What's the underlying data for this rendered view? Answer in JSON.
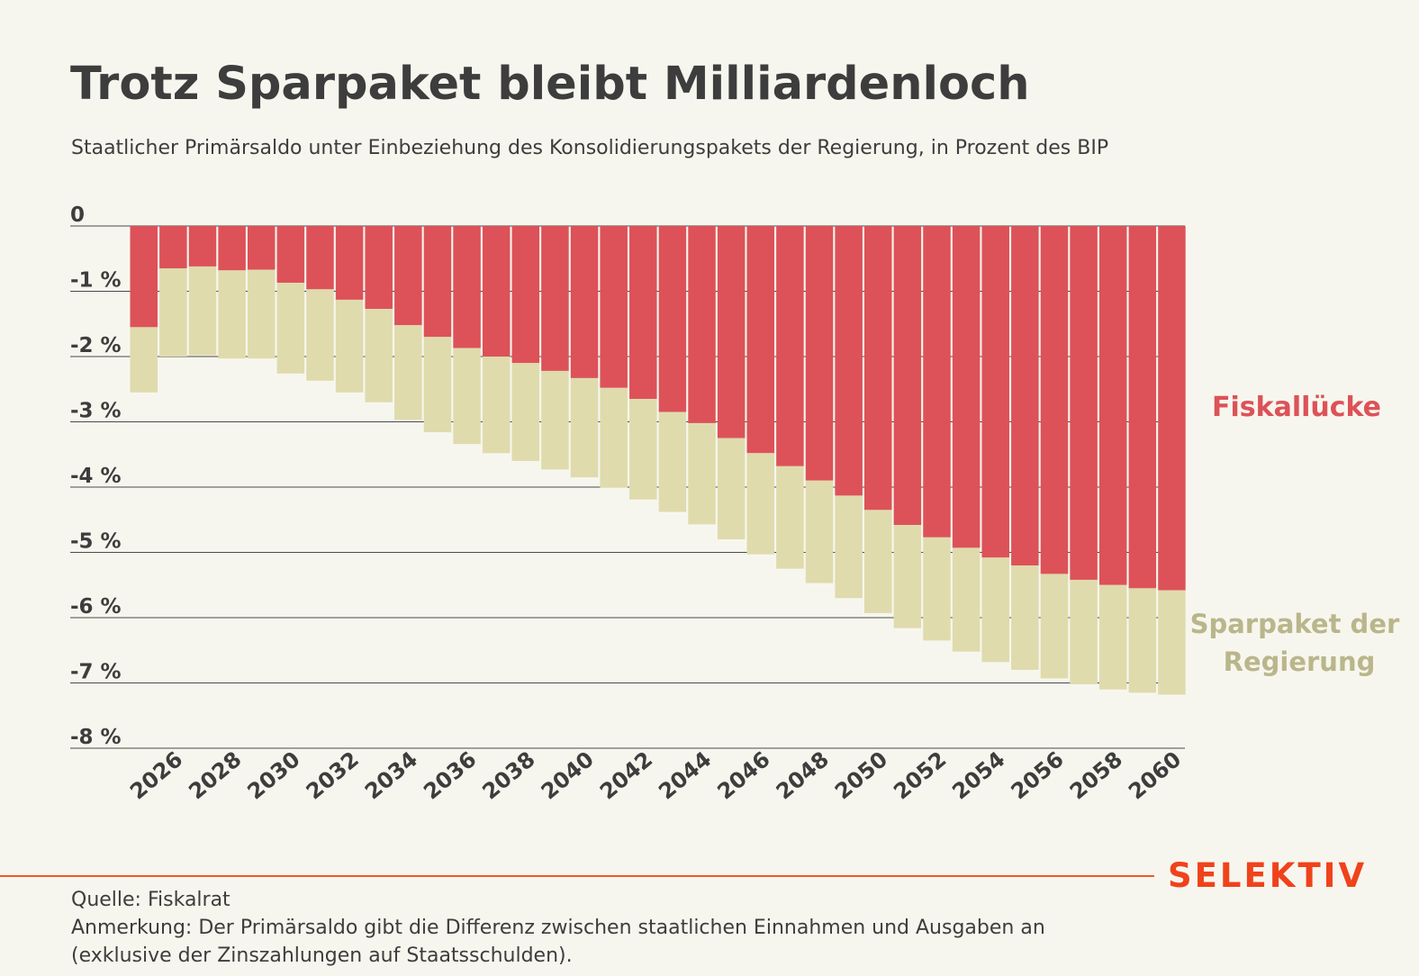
{
  "header": {
    "title": "Trotz Sparpaket bleibt Milliardenloch",
    "subtitle": "Staatlicher Primärsaldo unter Einbeziehung des Konsolidierungspakets der Regierung, in Prozent des BIP"
  },
  "footer": {
    "source": "Quelle: Fiskalrat",
    "note_line1": "Anmerkung: Der Primärsaldo gibt die Differenz zwischen staatlichen Einnahmen und Ausgaben an",
    "note_line2": "(exklusive der Zinszahlungen auf Staatsschulden)."
  },
  "brand": {
    "logo_text": "SELEKTIV",
    "color": "#f0421b"
  },
  "colors": {
    "fiskalluecke": "#dc5258",
    "sparpaket": "#dfdbad",
    "background": "#f7f6ee",
    "gridline": "#4a4a4a"
  },
  "chart_data": {
    "type": "bar",
    "stacked": true,
    "x": [
      2025,
      2026,
      2027,
      2028,
      2029,
      2030,
      2031,
      2032,
      2033,
      2034,
      2035,
      2036,
      2037,
      2038,
      2039,
      2040,
      2041,
      2042,
      2043,
      2044,
      2045,
      2046,
      2047,
      2048,
      2049,
      2050,
      2051,
      2052,
      2053,
      2054,
      2055,
      2056,
      2057,
      2058,
      2059,
      2060
    ],
    "x_tick_labels": [
      "2026",
      "2028",
      "2030",
      "2032",
      "2034",
      "2036",
      "2038",
      "2040",
      "2042",
      "2044",
      "2046",
      "2048",
      "2050",
      "2052",
      "2054",
      "2056",
      "2058",
      "2060"
    ],
    "series": [
      {
        "name": "Fiskallücke",
        "color": "#dc5258",
        "values": [
          -1.55,
          -0.65,
          -0.62,
          -0.68,
          -0.67,
          -0.87,
          -0.97,
          -1.13,
          -1.27,
          -1.52,
          -1.7,
          -1.87,
          -2.0,
          -2.1,
          -2.22,
          -2.33,
          -2.48,
          -2.65,
          -2.85,
          -3.02,
          -3.25,
          -3.48,
          -3.68,
          -3.9,
          -4.13,
          -4.35,
          -4.58,
          -4.77,
          -4.93,
          -5.08,
          -5.2,
          -5.33,
          -5.42,
          -5.5,
          -5.55,
          -5.58
        ]
      },
      {
        "name": "Sparpaket der Regierung",
        "color": "#dfdbad",
        "values": [
          -1.0,
          -1.35,
          -1.36,
          -1.35,
          -1.36,
          -1.39,
          -1.4,
          -1.42,
          -1.43,
          -1.45,
          -1.46,
          -1.47,
          -1.48,
          -1.5,
          -1.51,
          -1.52,
          -1.53,
          -1.54,
          -1.53,
          -1.55,
          -1.55,
          -1.55,
          -1.57,
          -1.57,
          -1.57,
          -1.58,
          -1.58,
          -1.58,
          -1.59,
          -1.6,
          -1.6,
          -1.6,
          -1.6,
          -1.6,
          -1.6,
          -1.6
        ]
      }
    ],
    "y_tick_labels": [
      "0",
      "-1 %",
      "-2 %",
      "-3 %",
      "-4 %",
      "-5 %",
      "-6 %",
      "-7 %",
      "-8 %"
    ],
    "y_ticks": [
      0,
      -1,
      -2,
      -3,
      -4,
      -5,
      -6,
      -7,
      -8
    ],
    "ylim": [
      -8,
      0
    ],
    "grid": true,
    "legend": "direct-labels-right",
    "ylabel": "",
    "xlabel": ""
  }
}
